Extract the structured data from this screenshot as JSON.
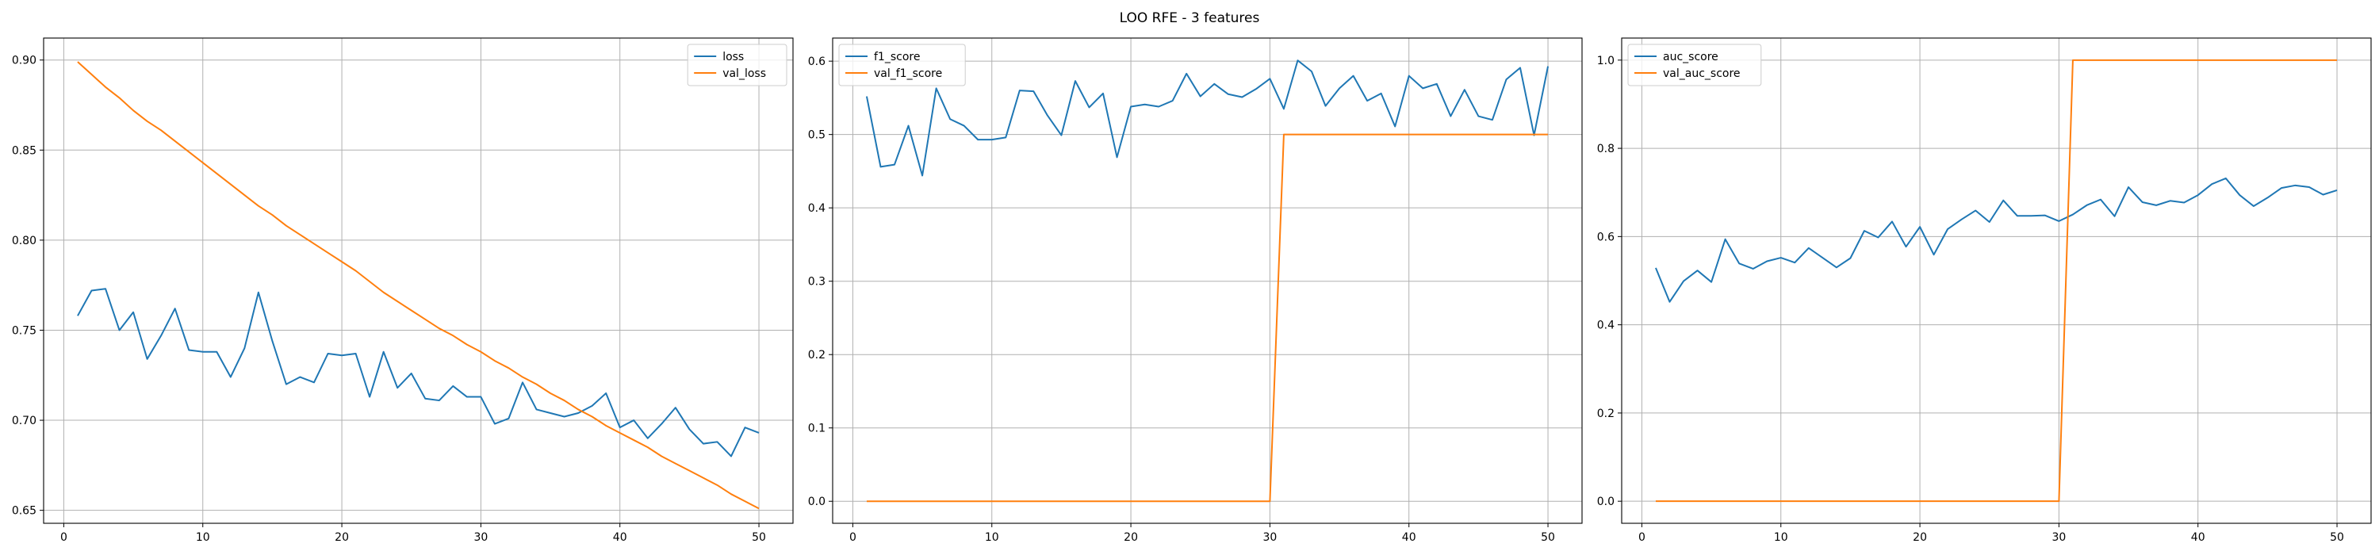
{
  "figure": {
    "title": "LOO RFE - 3 features"
  },
  "chart_data": [
    {
      "type": "line",
      "xlim": [
        -1.45,
        52.45
      ],
      "ylim": [
        0.6428,
        0.9122
      ],
      "xticks": [
        0,
        10,
        20,
        30,
        40,
        50
      ],
      "yticks": [
        0.65,
        0.7,
        0.75,
        0.8,
        0.85,
        0.9
      ],
      "ytick_labels": [
        "0.65",
        "0.70",
        "0.75",
        "0.80",
        "0.85",
        "0.90"
      ],
      "grid": true,
      "legend_position": "upper right",
      "x": [
        1,
        2,
        3,
        4,
        5,
        6,
        7,
        8,
        9,
        10,
        11,
        12,
        13,
        14,
        15,
        16,
        17,
        18,
        19,
        20,
        21,
        22,
        23,
        24,
        25,
        26,
        27,
        28,
        29,
        30,
        31,
        32,
        33,
        34,
        35,
        36,
        37,
        38,
        39,
        40,
        41,
        42,
        43,
        44,
        45,
        46,
        47,
        48,
        49,
        50
      ],
      "series": [
        {
          "name": "loss",
          "color": "#1f77b4",
          "values": [
            0.758,
            0.772,
            0.773,
            0.75,
            0.76,
            0.734,
            0.747,
            0.762,
            0.739,
            0.738,
            0.738,
            0.724,
            0.74,
            0.771,
            0.744,
            0.72,
            0.724,
            0.721,
            0.737,
            0.736,
            0.737,
            0.713,
            0.738,
            0.718,
            0.726,
            0.712,
            0.711,
            0.719,
            0.713,
            0.713,
            0.698,
            0.701,
            0.721,
            0.706,
            0.704,
            0.702,
            0.704,
            0.708,
            0.715,
            0.696,
            0.7,
            0.69,
            0.698,
            0.707,
            0.695,
            0.687,
            0.688,
            0.68,
            0.696,
            0.693
          ]
        },
        {
          "name": "val_loss",
          "color": "#ff7f0e",
          "values": [
            0.899,
            0.892,
            0.885,
            0.879,
            0.872,
            0.866,
            0.861,
            0.855,
            0.849,
            0.843,
            0.837,
            0.831,
            0.825,
            0.819,
            0.814,
            0.808,
            0.803,
            0.798,
            0.793,
            0.788,
            0.783,
            0.777,
            0.771,
            0.766,
            0.761,
            0.756,
            0.751,
            0.747,
            0.742,
            0.738,
            0.733,
            0.729,
            0.724,
            0.72,
            0.715,
            0.711,
            0.706,
            0.702,
            0.697,
            0.693,
            0.689,
            0.685,
            0.68,
            0.676,
            0.672,
            0.668,
            0.664,
            0.659,
            0.655,
            0.651
          ]
        }
      ]
    },
    {
      "type": "line",
      "xlim": [
        -1.45,
        52.45
      ],
      "ylim": [
        -0.03,
        0.6315
      ],
      "xticks": [
        0,
        10,
        20,
        30,
        40,
        50
      ],
      "yticks": [
        0.0,
        0.1,
        0.2,
        0.3,
        0.4,
        0.5,
        0.6
      ],
      "ytick_labels": [
        "0.0",
        "0.1",
        "0.2",
        "0.3",
        "0.4",
        "0.5",
        "0.6"
      ],
      "grid": true,
      "legend_position": "upper left",
      "x": [
        1,
        2,
        3,
        4,
        5,
        6,
        7,
        8,
        9,
        10,
        11,
        12,
        13,
        14,
        15,
        16,
        17,
        18,
        19,
        20,
        21,
        22,
        23,
        24,
        25,
        26,
        27,
        28,
        29,
        30,
        31,
        32,
        33,
        34,
        35,
        36,
        37,
        38,
        39,
        40,
        41,
        42,
        43,
        44,
        45,
        46,
        47,
        48,
        49,
        50
      ],
      "series": [
        {
          "name": "f1_score",
          "color": "#1f77b4",
          "values": [
            0.552,
            0.456,
            0.459,
            0.512,
            0.444,
            0.563,
            0.521,
            0.512,
            0.493,
            0.493,
            0.496,
            0.56,
            0.559,
            0.526,
            0.499,
            0.573,
            0.537,
            0.556,
            0.469,
            0.538,
            0.541,
            0.538,
            0.546,
            0.583,
            0.552,
            0.569,
            0.555,
            0.551,
            0.562,
            0.576,
            0.535,
            0.601,
            0.586,
            0.539,
            0.563,
            0.58,
            0.546,
            0.556,
            0.511,
            0.58,
            0.563,
            0.569,
            0.525,
            0.561,
            0.525,
            0.52,
            0.575,
            0.591,
            0.499,
            0.593
          ]
        },
        {
          "name": "val_f1_score",
          "color": "#ff7f0e",
          "values": [
            0,
            0,
            0,
            0,
            0,
            0,
            0,
            0,
            0,
            0,
            0,
            0,
            0,
            0,
            0,
            0,
            0,
            0,
            0,
            0,
            0,
            0,
            0,
            0,
            0,
            0,
            0,
            0,
            0,
            0,
            0.5,
            0.5,
            0.5,
            0.5,
            0.5,
            0.5,
            0.5,
            0.5,
            0.5,
            0.5,
            0.5,
            0.5,
            0.5,
            0.5,
            0.5,
            0.5,
            0.5,
            0.5,
            0.5,
            0.5
          ]
        }
      ]
    },
    {
      "type": "line",
      "xlim": [
        -1.45,
        52.45
      ],
      "ylim": [
        -0.05,
        1.05
      ],
      "xticks": [
        0,
        10,
        20,
        30,
        40,
        50
      ],
      "yticks": [
        0.0,
        0.2,
        0.4,
        0.6,
        0.8,
        1.0
      ],
      "ytick_labels": [
        "0.0",
        "0.2",
        "0.4",
        "0.6",
        "0.8",
        "1.0"
      ],
      "grid": true,
      "legend_position": "upper left",
      "x": [
        1,
        2,
        3,
        4,
        5,
        6,
        7,
        8,
        9,
        10,
        11,
        12,
        13,
        14,
        15,
        16,
        17,
        18,
        19,
        20,
        21,
        22,
        23,
        24,
        25,
        26,
        27,
        28,
        29,
        30,
        31,
        32,
        33,
        34,
        35,
        36,
        37,
        38,
        39,
        40,
        41,
        42,
        43,
        44,
        45,
        46,
        47,
        48,
        49,
        50
      ],
      "series": [
        {
          "name": "auc_score",
          "color": "#1f77b4",
          "values": [
            0.529,
            0.452,
            0.499,
            0.523,
            0.497,
            0.594,
            0.539,
            0.527,
            0.544,
            0.552,
            0.541,
            0.574,
            0.552,
            0.53,
            0.551,
            0.613,
            0.598,
            0.634,
            0.577,
            0.622,
            0.559,
            0.617,
            0.639,
            0.659,
            0.633,
            0.682,
            0.647,
            0.647,
            0.648,
            0.635,
            0.65,
            0.671,
            0.684,
            0.646,
            0.712,
            0.678,
            0.671,
            0.681,
            0.677,
            0.694,
            0.719,
            0.732,
            0.694,
            0.669,
            0.688,
            0.71,
            0.716,
            0.712,
            0.695,
            0.705
          ]
        },
        {
          "name": "val_auc_score",
          "color": "#ff7f0e",
          "values": [
            0,
            0,
            0,
            0,
            0,
            0,
            0,
            0,
            0,
            0,
            0,
            0,
            0,
            0,
            0,
            0,
            0,
            0,
            0,
            0,
            0,
            0,
            0,
            0,
            0,
            0,
            0,
            0,
            0,
            0,
            1,
            1,
            1,
            1,
            1,
            1,
            1,
            1,
            1,
            1,
            1,
            1,
            1,
            1,
            1,
            1,
            1,
            1,
            1,
            1
          ]
        }
      ]
    }
  ]
}
